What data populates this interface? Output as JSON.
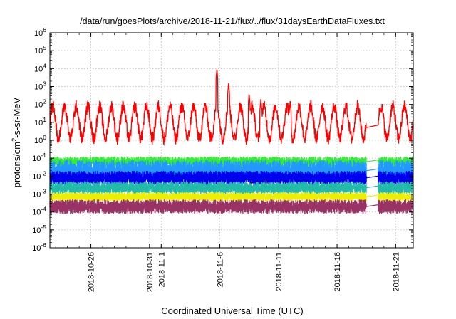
{
  "chart_data": {
    "type": "line",
    "title": "/data/run/goesPlots/archive/2018-11-21/flux/../flux/31daysEarthDataFluxes.txt",
    "xlabel": "Coordinated Universal Time (UTC)",
    "ylabel_main": "protons/cm",
    "ylabel_exp": "2",
    "ylabel_rest": "-s-sr-MeV",
    "y_scale": "log",
    "ylim": [
      1e-06,
      1000000.0
    ],
    "xlim": [
      "2018-10-22T12:00",
      "2018-11-22T12:00"
    ],
    "grid": true,
    "legend": "none",
    "y_ticks": [
      {
        "exp": -6,
        "base": "10",
        "sup": "-6"
      },
      {
        "exp": -5,
        "base": "10",
        "sup": "-5"
      },
      {
        "exp": -4,
        "base": "10",
        "sup": "-4"
      },
      {
        "exp": -3,
        "base": "10",
        "sup": "-3"
      },
      {
        "exp": -2,
        "base": "10",
        "sup": "-2"
      },
      {
        "exp": -1,
        "base": "10",
        "sup": "-1"
      },
      {
        "exp": 0,
        "base": "10",
        "sup": "0"
      },
      {
        "exp": 1,
        "base": "10",
        "sup": "1"
      },
      {
        "exp": 2,
        "base": "10",
        "sup": "2"
      },
      {
        "exp": 3,
        "base": "10",
        "sup": "3"
      },
      {
        "exp": 4,
        "base": "10",
        "sup": "4"
      },
      {
        "exp": 5,
        "base": "10",
        "sup": "5"
      },
      {
        "exp": 6,
        "base": "10",
        "sup": "6"
      }
    ],
    "x_ticks": [
      {
        "day": "2018-10-26",
        "label": "2018-10-26"
      },
      {
        "day": "2018-10-31",
        "label": "2018-10-31"
      },
      {
        "day": "2018-11-01",
        "label": "2018-11-1"
      },
      {
        "day": "2018-11-06",
        "label": "2018-11-6"
      },
      {
        "day": "2018-11-11",
        "label": "2018-11-11"
      },
      {
        "day": "2018-11-16",
        "label": "2018-11-16"
      },
      {
        "day": "2018-11-21",
        "label": "2018-11-21"
      }
    ],
    "gap": [
      "2018-11-18T12:00",
      "2018-11-19T12:00"
    ],
    "series": [
      {
        "color": "#ff0000",
        "base_log": 1.0,
        "daily_amplitude": 1.0,
        "noise": 0.35,
        "events": [
          {
            "t": "2018-11-05T18:00",
            "log": 4.0
          },
          {
            "t": "2018-11-06T18:00",
            "log": 3.2
          },
          {
            "t": "2018-11-08T12:00",
            "log": 2.6
          },
          {
            "t": "2018-11-09T12:00",
            "log": 2.3
          },
          {
            "t": "2018-11-12T00:00",
            "log": 2.2
          }
        ]
      },
      {
        "color": "#33ee33",
        "band_log": [
          -1.5,
          -0.9
        ]
      },
      {
        "color": "#2299ff",
        "band_log": [
          -2.3,
          -1.1
        ]
      },
      {
        "color": "#0000ee",
        "band_log": [
          -2.5,
          -1.7
        ]
      },
      {
        "color": "#22bbaa",
        "band_log": [
          -3.0,
          -2.3
        ]
      },
      {
        "color": "#eeee00",
        "band_log": [
          -3.4,
          -2.9
        ]
      },
      {
        "color": "#993366",
        "band_log": [
          -4.1,
          -3.3
        ]
      }
    ]
  }
}
